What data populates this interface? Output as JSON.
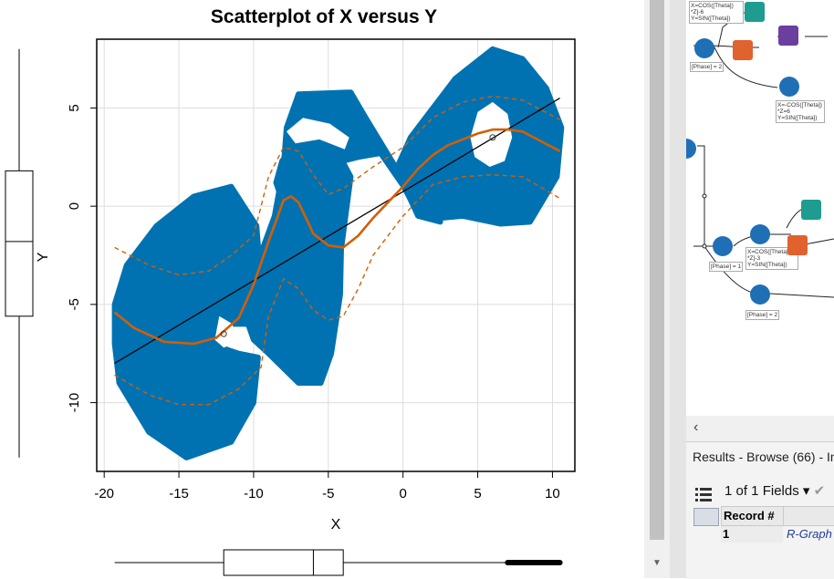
{
  "chart_data": {
    "type": "scatter",
    "title": "Scatterplot of X versus Y",
    "xlabel": "X",
    "ylabel": "Y",
    "xlim": [
      -20.5,
      11.5
    ],
    "ylim": [
      -13.5,
      8.5
    ],
    "xticks": [
      -20,
      -15,
      -10,
      -5,
      0,
      5,
      10
    ],
    "yticks": [
      5,
      0,
      -5,
      -10
    ],
    "grid": true,
    "point_color": "#0072b2",
    "smooth_color": "#d55e00",
    "regression_color": "#000000",
    "regression_line": {
      "x": [
        -19.3,
        10.5
      ],
      "y": [
        -8.0,
        5.5
      ]
    },
    "smooth_line": {
      "x": [
        -19.3,
        -18,
        -16,
        -14,
        -12.5,
        -11,
        -10,
        -9,
        -8,
        -7.5,
        -7,
        -6.5,
        -6,
        -5,
        -4,
        -3,
        -2,
        -1,
        0,
        1,
        2,
        3,
        4,
        5,
        6,
        7,
        8,
        9,
        10.5
      ],
      "y": [
        -5.4,
        -6.2,
        -6.9,
        -7.0,
        -6.7,
        -5.7,
        -4.0,
        -1.8,
        0.3,
        0.5,
        0.2,
        -0.6,
        -1.4,
        -2.0,
        -2.1,
        -1.5,
        -0.6,
        0.2,
        1.0,
        1.9,
        2.6,
        3.1,
        3.4,
        3.7,
        3.9,
        3.9,
        3.8,
        3.4,
        2.8
      ]
    },
    "smooth_band_upper": {
      "x": [
        -19.3,
        -17,
        -15,
        -13,
        -11.5,
        -10,
        -9,
        -8,
        -7,
        -6,
        -5,
        -4,
        -2,
        0,
        2,
        4,
        6,
        8,
        10.5
      ],
      "y": [
        -2.1,
        -3.0,
        -3.5,
        -3.3,
        -2.5,
        -1.5,
        1.5,
        3.0,
        2.8,
        1.6,
        0.6,
        0.9,
        2.0,
        3.0,
        4.5,
        5.3,
        5.6,
        5.4,
        4.4
      ]
    },
    "smooth_band_lower": {
      "x": [
        -19.3,
        -17,
        -15,
        -13,
        -11,
        -9.5,
        -9,
        -8,
        -7,
        -6,
        -5,
        -4,
        -3,
        -2,
        0,
        2,
        4,
        6,
        8,
        10.5
      ],
      "y": [
        -8.6,
        -9.6,
        -10.1,
        -10.1,
        -9.3,
        -8.2,
        -5.6,
        -3.7,
        -4.2,
        -5.3,
        -5.8,
        -5.6,
        -4.2,
        -2.5,
        -0.5,
        1.1,
        1.5,
        1.6,
        1.5,
        0.4
      ]
    },
    "highlighted_points": [
      {
        "x": -12,
        "y": -6.5
      },
      {
        "x": 6,
        "y": 3.5
      }
    ],
    "y_boxplot": {
      "min": -12.8,
      "q1": -5.6,
      "median": -1.8,
      "q3": 1.8,
      "max": 8.0
    },
    "x_boxplot": {
      "min": -19.3,
      "q1": -12,
      "median": -6,
      "q3": -4,
      "max": 10.5
    }
  },
  "canvas": {
    "notes": [
      "X=COS([Theta])\n*Z]-6\nY=SIN([Theta])",
      "[Phase] = 2",
      "X=-COS([Theta])\n*Z=6\nY=SIN([Theta])",
      "X=COS([Theta])\n*Z]-3\nY=SIN([Theta])",
      "[Phase] = 1",
      "[Phase] = 2"
    ]
  },
  "results": {
    "header": "Results - Browse (66) - In",
    "fields_count": "1 of 1 Fields",
    "column_record": "Record #",
    "row_number": "1",
    "row_value": "R-Graph"
  },
  "colors": {
    "tool_blue": "#1f6fb5",
    "tool_orange": "#e0622e",
    "tool_purple": "#6b3fa0",
    "tool_teal": "#1d9c8f"
  }
}
